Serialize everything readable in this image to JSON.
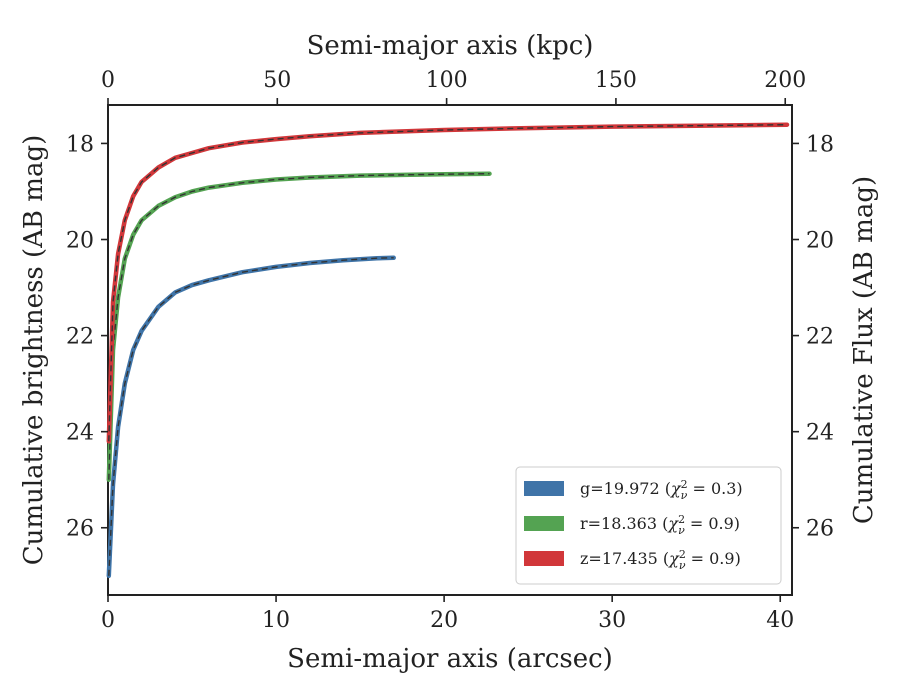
{
  "chart_data": {
    "type": "line",
    "title": "",
    "xlabel": "Semi-major axis (arcsec)",
    "ylabel": "Cumulative brightness (AB mag)",
    "x2label": "Semi-major axis (kpc)",
    "y2label": "Cumulative Flux (AB mag)",
    "xlim": [
      0,
      40.7
    ],
    "ylim": [
      27.4,
      17.2
    ],
    "y_inverted": true,
    "x2lim": [
      0,
      202
    ],
    "xticks": [
      0,
      10,
      20,
      30,
      40
    ],
    "yticks": [
      18,
      20,
      22,
      24,
      26
    ],
    "x2ticks": [
      0,
      50,
      100,
      150,
      200
    ],
    "grid": false,
    "legend_position": "lower-right",
    "series": [
      {
        "name": "g=19.972 (χ²ν = 0.3)",
        "label_main": "g=19.972 (",
        "label_chi": "χ",
        "label_sup": "2",
        "label_sub": "ν",
        "label_value": " = 0.3)",
        "color": "#3f74a8",
        "x": [
          0.05,
          0.3,
          0.6,
          1.0,
          1.5,
          2.0,
          3.0,
          4.0,
          5.0,
          6.0,
          8.0,
          10.0,
          12.0,
          14.0,
          16.0,
          17.0
        ],
        "y": [
          27.0,
          25.1,
          23.9,
          23.0,
          22.3,
          21.9,
          21.4,
          21.1,
          20.95,
          20.85,
          20.68,
          20.57,
          20.49,
          20.43,
          20.39,
          20.38
        ]
      },
      {
        "name": "r=18.363 (χ²ν = 0.9)",
        "label_main": "r=18.363 (",
        "label_chi": "χ",
        "label_sup": "2",
        "label_sub": "ν",
        "label_value": " = 0.9)",
        "color": "#54a352",
        "x": [
          0.05,
          0.3,
          0.6,
          1.0,
          1.5,
          2.0,
          3.0,
          4.0,
          5.0,
          6.0,
          8.0,
          10.0,
          12.0,
          15.0,
          18.0,
          20.0,
          22.7
        ],
        "y": [
          25.0,
          22.3,
          21.2,
          20.4,
          19.9,
          19.6,
          19.3,
          19.12,
          19.0,
          18.92,
          18.82,
          18.75,
          18.71,
          18.67,
          18.65,
          18.64,
          18.63
        ]
      },
      {
        "name": "z=17.435 (χ²ν = 0.9)",
        "label_main": "z=17.435 (",
        "label_chi": "χ",
        "label_sup": "2",
        "label_sub": "ν",
        "label_value": " = 0.9)",
        "color": "#d1373a",
        "x": [
          0.05,
          0.3,
          0.6,
          1.0,
          1.5,
          2.0,
          3.0,
          4.0,
          5.0,
          6.0,
          8.0,
          10.0,
          12.0,
          15.0,
          20.0,
          25.0,
          30.0,
          35.0,
          40.4
        ],
        "y": [
          24.2,
          21.3,
          20.3,
          19.6,
          19.1,
          18.8,
          18.5,
          18.3,
          18.2,
          18.1,
          17.98,
          17.91,
          17.85,
          17.78,
          17.72,
          17.68,
          17.65,
          17.63,
          17.61
        ]
      }
    ]
  }
}
